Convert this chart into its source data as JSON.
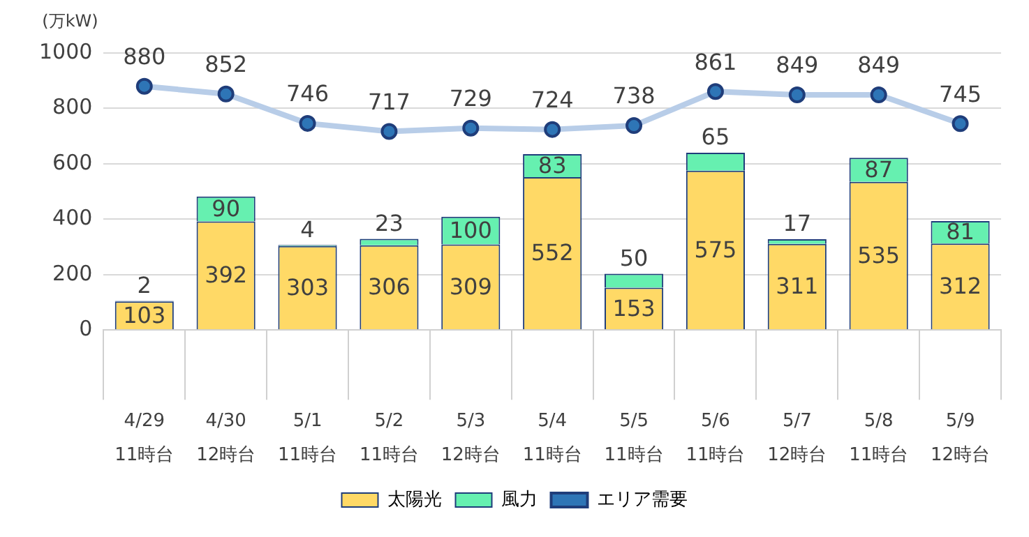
{
  "chart_data": {
    "type": "bar",
    "stacked": true,
    "ylabel": "(万kW)",
    "categories": [
      "4/29\n11時台",
      "4/30\n12時台",
      "5/1\n11時台",
      "5/2\n11時台",
      "5/3\n12時台",
      "5/4\n11時台",
      "5/5\n11時台",
      "5/6\n11時台",
      "5/7\n12時台",
      "5/8\n11時台",
      "5/9\n12時台"
    ],
    "series": [
      {
        "name": "太陽光",
        "color": "#ffd966",
        "values": [
          103,
          392,
          303,
          306,
          309,
          552,
          153,
          575,
          311,
          535,
          312
        ]
      },
      {
        "name": "風力",
        "color": "#66f0b0",
        "values": [
          2,
          90,
          4,
          23,
          100,
          83,
          50,
          65,
          17,
          87,
          81
        ]
      },
      {
        "name": "エリア需要",
        "type": "line",
        "color": "#b8cde8",
        "marker": "circle",
        "values": [
          880,
          852,
          746,
          717,
          729,
          724,
          738,
          861,
          849,
          849,
          745
        ]
      }
    ],
    "ylim": [
      0,
      1000
    ],
    "yticks": [
      0,
      200,
      400,
      600,
      800,
      1000
    ],
    "grid": "y",
    "legend": "bottom",
    "data_labels": true
  }
}
